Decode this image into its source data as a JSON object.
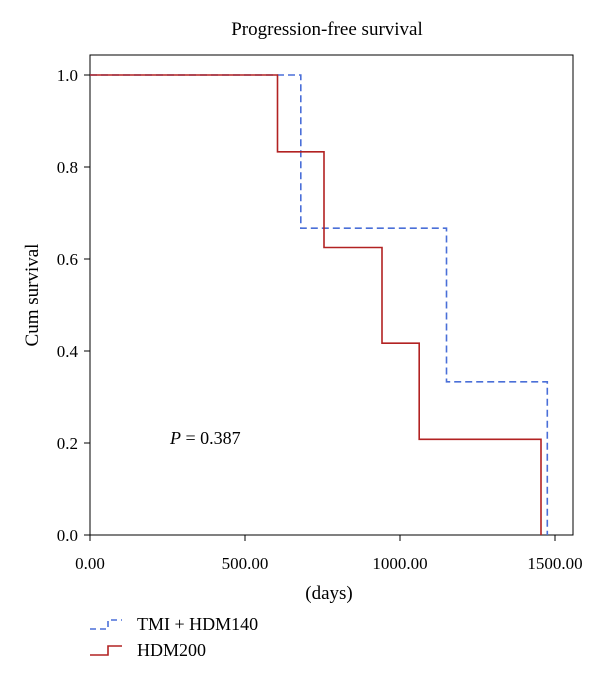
{
  "chart_data": {
    "type": "line",
    "step": true,
    "title": "Progression-free survival",
    "xlabel": "(days)",
    "ylabel": "Cum survival",
    "xlim": [
      0,
      1500
    ],
    "ylim": [
      0,
      1.0
    ],
    "xticks": [
      0,
      500,
      1000,
      1500
    ],
    "xtick_labels": [
      "0.00",
      "500.00",
      "1000.00",
      "1500.00"
    ],
    "yticks": [
      0,
      0.2,
      0.4,
      0.6,
      0.8,
      1.0
    ],
    "ytick_labels": [
      "0.0",
      "0.2",
      "0.4",
      "0.6",
      "0.8",
      "1.0"
    ],
    "annotation": {
      "prefix": "P",
      "text": " = 0.387"
    },
    "legend_position": "bottom-left",
    "series": [
      {
        "name": "TMI + HDM140",
        "color": "#4a6fd8",
        "dashed": true,
        "x": [
          0,
          680,
          680,
          1150,
          1150,
          1475,
          1475
        ],
        "y": [
          1.0,
          1.0,
          0.667,
          0.667,
          0.333,
          0.333,
          0.0
        ]
      },
      {
        "name": "HDM200",
        "color": "#b22222",
        "dashed": false,
        "x": [
          0,
          605,
          605,
          755,
          755,
          942,
          942,
          1062,
          1062,
          1455,
          1455
        ],
        "y": [
          1.0,
          1.0,
          0.833,
          0.833,
          0.625,
          0.625,
          0.417,
          0.417,
          0.208,
          0.208,
          0.0
        ]
      }
    ]
  }
}
